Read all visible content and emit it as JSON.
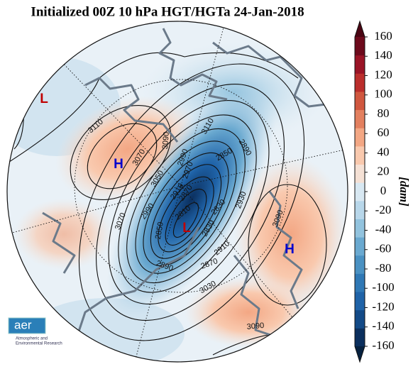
{
  "title": "Initialized 00Z 10 hPa HGT/HGTa 24-Jan-2018",
  "colorbar": {
    "label": "[dam]",
    "lim": [
      -160,
      160
    ],
    "ticks": [
      160,
      140,
      120,
      100,
      80,
      60,
      40,
      20,
      0,
      -20,
      -40,
      -60,
      -80,
      -100,
      -120,
      -140,
      -160
    ],
    "colors": [
      "#0b2f5e",
      "#134a87",
      "#1f63a8",
      "#2f78b5",
      "#4a91c2",
      "#6aa9d0",
      "#92c3de",
      "#b8d7ea",
      "#d8e8f2",
      "#f5e1d5",
      "#f9c9ae",
      "#f3a784",
      "#e3805f",
      "#d0573f",
      "#bb2e2c",
      "#9a1426",
      "#6d0a1c"
    ],
    "end_colors": [
      "#06213f",
      "#4a0513"
    ]
  },
  "pressure_centers": [
    {
      "label": "L"
    },
    {
      "label": "H"
    },
    {
      "label": "L"
    },
    {
      "label": "H"
    }
  ],
  "contour_labels": [
    3110,
    3090,
    3110,
    2850,
    2890,
    3070,
    3050,
    2990,
    2970,
    2910,
    2870,
    2990,
    3070,
    2810,
    2850,
    2830,
    2930,
    2830,
    3090,
    2910,
    2870,
    2890,
    3030,
    3090
  ],
  "logo": {
    "name": "aer",
    "line1": "Atmospheric and",
    "line2": "Environmental Research"
  }
}
